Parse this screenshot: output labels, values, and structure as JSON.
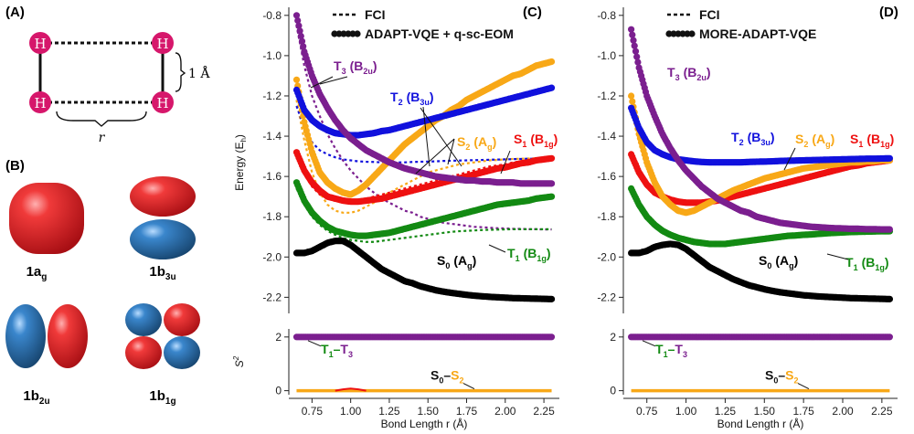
{
  "panels": {
    "a": "(A)",
    "b": "(B)",
    "c": "(C)",
    "d": "(D)"
  },
  "molecule": {
    "atom": "H",
    "distance_label": "1 Å",
    "r_label": "r"
  },
  "orbitals": [
    {
      "name": "1a",
      "sub": "g"
    },
    {
      "name": "1b",
      "sub": "3u"
    },
    {
      "name": "1b",
      "sub": "2u"
    },
    {
      "name": "1b",
      "sub": "1g"
    }
  ],
  "colors": {
    "S0": "#000000",
    "T1": "#138a13",
    "S1": "#ee1111",
    "S2": "#f8a817",
    "T2": "#1111dd",
    "T3": "#7b1f8f",
    "orb_red": "#e2222a",
    "orb_blue": "#2a6db0",
    "atom": "#d6176b"
  },
  "axes": {
    "y_energy_label": "Energy (E",
    "y_energy_sub": "h",
    "y_energy_close": ")",
    "y_s2_label": "S",
    "y_s2_sup": "2",
    "x_label": "Bond Length r (Å)",
    "x_ticks": [
      "0.75",
      "1.00",
      "1.25",
      "1.50",
      "1.75",
      "2.00",
      "2.25"
    ],
    "x_tick_values": [
      0.75,
      1.0,
      1.25,
      1.5,
      1.75,
      2.0,
      2.25
    ],
    "y_ticks": [
      "-0.8",
      "-1.0",
      "-1.2",
      "-1.4",
      "-1.6",
      "-1.8",
      "-2.0",
      "-2.2"
    ],
    "y_tick_values": [
      -0.8,
      -1.0,
      -1.2,
      -1.4,
      -1.6,
      -1.8,
      -2.0,
      -2.2
    ],
    "s2_ticks": [
      "2",
      "0"
    ],
    "s2_tick_values": [
      2,
      0
    ]
  },
  "chart_data": [
    {
      "type": "line",
      "panel": "C",
      "legend": [
        {
          "label": "FCI",
          "style": "dashed"
        },
        {
          "label": "ADAPT-VQE + q-sc-EOM",
          "style": "dots"
        }
      ],
      "xlim": [
        0.6,
        2.35
      ],
      "ylim": [
        -2.28,
        -0.76
      ],
      "x": [
        0.65,
        0.7,
        0.75,
        0.8,
        0.85,
        0.9,
        0.95,
        1.0,
        1.05,
        1.1,
        1.15,
        1.2,
        1.25,
        1.3,
        1.35,
        1.4,
        1.45,
        1.5,
        1.55,
        1.6,
        1.65,
        1.7,
        1.75,
        1.8,
        1.85,
        1.9,
        1.95,
        2.0,
        2.05,
        2.1,
        2.15,
        2.2,
        2.25,
        2.3
      ],
      "series": [
        {
          "name": "S0",
          "label": "S",
          "sub": "0",
          "sym": "A",
          "symsub": "g",
          "kind": "vqe",
          "values": [
            -1.98,
            -1.98,
            -1.97,
            -1.95,
            -1.93,
            -1.92,
            -1.92,
            -1.94,
            -1.97,
            -2.0,
            -2.03,
            -2.06,
            -2.08,
            -2.1,
            -2.12,
            -2.13,
            -2.145,
            -2.155,
            -2.165,
            -2.172,
            -2.178,
            -2.183,
            -2.188,
            -2.192,
            -2.195,
            -2.198,
            -2.2,
            -2.202,
            -2.204,
            -2.205,
            -2.206,
            -2.207,
            -2.208,
            -2.209
          ]
        },
        {
          "name": "T1",
          "label": "T",
          "sub": "1",
          "sym": "B",
          "symsub": "1g",
          "kind": "vqe",
          "values": [
            -1.63,
            -1.72,
            -1.78,
            -1.82,
            -1.85,
            -1.87,
            -1.88,
            -1.89,
            -1.895,
            -1.895,
            -1.89,
            -1.885,
            -1.88,
            -1.87,
            -1.86,
            -1.85,
            -1.84,
            -1.83,
            -1.82,
            -1.81,
            -1.8,
            -1.79,
            -1.78,
            -1.77,
            -1.76,
            -1.75,
            -1.74,
            -1.735,
            -1.73,
            -1.725,
            -1.72,
            -1.71,
            -1.705,
            -1.7
          ]
        },
        {
          "name": "S1",
          "label": "S",
          "sub": "1",
          "sym": "B",
          "symsub": "1g",
          "kind": "vqe",
          "values": [
            -1.48,
            -1.57,
            -1.63,
            -1.67,
            -1.7,
            -1.71,
            -1.72,
            -1.725,
            -1.725,
            -1.72,
            -1.715,
            -1.71,
            -1.7,
            -1.69,
            -1.68,
            -1.67,
            -1.66,
            -1.65,
            -1.64,
            -1.63,
            -1.62,
            -1.61,
            -1.6,
            -1.59,
            -1.58,
            -1.57,
            -1.56,
            -1.555,
            -1.545,
            -1.535,
            -1.53,
            -1.52,
            -1.515,
            -1.51
          ]
        },
        {
          "name": "S2",
          "label": "S",
          "sub": "2",
          "sym": "A",
          "symsub": "g",
          "kind": "vqe",
          "values": [
            -1.12,
            -1.33,
            -1.48,
            -1.58,
            -1.63,
            -1.66,
            -1.68,
            -1.69,
            -1.67,
            -1.64,
            -1.6,
            -1.56,
            -1.52,
            -1.48,
            -1.44,
            -1.41,
            -1.38,
            -1.35,
            -1.32,
            -1.3,
            -1.27,
            -1.25,
            -1.22,
            -1.2,
            -1.18,
            -1.16,
            -1.14,
            -1.12,
            -1.1,
            -1.09,
            -1.07,
            -1.05,
            -1.04,
            -1.03
          ]
        },
        {
          "name": "T2",
          "label": "T",
          "sub": "2",
          "sym": "B",
          "symsub": "3u",
          "kind": "vqe",
          "values": [
            -1.17,
            -1.27,
            -1.32,
            -1.35,
            -1.37,
            -1.385,
            -1.39,
            -1.395,
            -1.395,
            -1.39,
            -1.385,
            -1.375,
            -1.37,
            -1.36,
            -1.35,
            -1.34,
            -1.33,
            -1.32,
            -1.31,
            -1.3,
            -1.29,
            -1.28,
            -1.27,
            -1.26,
            -1.25,
            -1.24,
            -1.23,
            -1.22,
            -1.21,
            -1.2,
            -1.19,
            -1.18,
            -1.17,
            -1.16
          ]
        },
        {
          "name": "T3",
          "label": "T",
          "sub": "3",
          "sym": "B",
          "symsub": "2u",
          "kind": "vqe",
          "values": [
            -0.8,
            -0.98,
            -1.1,
            -1.19,
            -1.26,
            -1.32,
            -1.37,
            -1.41,
            -1.44,
            -1.47,
            -1.49,
            -1.51,
            -1.53,
            -1.545,
            -1.56,
            -1.57,
            -1.58,
            -1.59,
            -1.6,
            -1.605,
            -1.61,
            -1.615,
            -1.62,
            -1.62,
            -1.625,
            -1.625,
            -1.63,
            -1.63,
            -1.63,
            -1.635,
            -1.635,
            -1.635,
            -1.635,
            -1.635
          ]
        },
        {
          "name": "FCI_T3",
          "kind": "fci",
          "color": "T3",
          "values": [
            -0.85,
            -1.05,
            -1.2,
            -1.3,
            -1.39,
            -1.46,
            -1.52,
            -1.57,
            -1.61,
            -1.65,
            -1.68,
            -1.71,
            -1.73,
            -1.75,
            -1.77,
            -1.78,
            -1.8,
            -1.81,
            -1.82,
            -1.83,
            -1.835,
            -1.84,
            -1.845,
            -1.85,
            -1.852,
            -1.855,
            -1.857,
            -1.858,
            -1.86,
            -1.86,
            -1.862,
            -1.862,
            -1.863,
            -1.863
          ]
        },
        {
          "name": "FCI_S2",
          "kind": "fci",
          "color": "S2",
          "values": [
            -1.22,
            -1.42,
            -1.58,
            -1.68,
            -1.74,
            -1.77,
            -1.78,
            -1.78,
            -1.77,
            -1.75,
            -1.73,
            -1.7,
            -1.68,
            -1.66,
            -1.64,
            -1.62,
            -1.6,
            -1.58,
            -1.57,
            -1.56,
            -1.55,
            -1.54,
            -1.535,
            -1.53,
            -1.525,
            -1.52,
            -1.518,
            -1.515,
            -1.513,
            -1.512,
            -1.511,
            -1.51,
            -1.51,
            -1.51
          ]
        },
        {
          "name": "FCI_T2",
          "kind": "fci",
          "color": "T2",
          "values": [
            -1.25,
            -1.36,
            -1.43,
            -1.47,
            -1.49,
            -1.505,
            -1.515,
            -1.52,
            -1.525,
            -1.527,
            -1.528,
            -1.53,
            -1.53,
            -1.53,
            -1.53,
            -1.528,
            -1.527,
            -1.526,
            -1.525,
            -1.523,
            -1.522,
            -1.521,
            -1.52,
            -1.519,
            -1.518,
            -1.517,
            -1.516,
            -1.515,
            -1.514,
            -1.513,
            -1.512,
            -1.512,
            -1.511,
            -1.51
          ]
        },
        {
          "name": "FCI_S1",
          "kind": "fci",
          "color": "S1",
          "values": [
            -1.5,
            -1.59,
            -1.65,
            -1.69,
            -1.71,
            -1.72,
            -1.725,
            -1.72,
            -1.715,
            -1.71,
            -1.7,
            -1.69,
            -1.68,
            -1.67,
            -1.66,
            -1.65,
            -1.64,
            -1.63,
            -1.62,
            -1.61,
            -1.6,
            -1.59,
            -1.58,
            -1.57,
            -1.56,
            -1.55,
            -1.545,
            -1.54,
            -1.53,
            -1.525,
            -1.52,
            -1.515,
            -1.51,
            -1.51
          ]
        },
        {
          "name": "FCI_T1",
          "kind": "fci",
          "color": "T1",
          "values": [
            -1.66,
            -1.74,
            -1.8,
            -1.84,
            -1.87,
            -1.89,
            -1.905,
            -1.915,
            -1.92,
            -1.925,
            -1.925,
            -1.92,
            -1.915,
            -1.91,
            -1.905,
            -1.9,
            -1.895,
            -1.89,
            -1.885,
            -1.88,
            -1.875,
            -1.872,
            -1.87,
            -1.868,
            -1.866,
            -1.865,
            -1.864,
            -1.863,
            -1.862,
            -1.862,
            -1.862,
            -1.862,
            -1.862,
            -1.862
          ]
        }
      ],
      "s2": {
        "ylim": [
          -0.15,
          2.3
        ],
        "T1_T3": 2,
        "S0_S2": 0,
        "bump_x": [
          0.9,
          0.95,
          1.0,
          1.05,
          1.1
        ],
        "bump_vals": [
          0.0,
          0.05,
          0.08,
          0.05,
          0.0
        ],
        "label_top": {
          "a": "T",
          "as": "1",
          "b": "T",
          "bs": "3"
        },
        "label_bot": {
          "a": "S",
          "as": "0",
          "b": "S",
          "bs": "2"
        }
      }
    },
    {
      "type": "line",
      "panel": "D",
      "legend": [
        {
          "label": "FCI",
          "style": "dashed"
        },
        {
          "label": "MORE-ADAPT-VQE",
          "style": "dots"
        }
      ],
      "xlim": [
        0.6,
        2.35
      ],
      "ylim": [
        -2.28,
        -0.76
      ],
      "x": [
        0.65,
        0.7,
        0.75,
        0.8,
        0.85,
        0.9,
        0.95,
        1.0,
        1.05,
        1.1,
        1.15,
        1.2,
        1.25,
        1.3,
        1.35,
        1.4,
        1.45,
        1.5,
        1.55,
        1.6,
        1.65,
        1.7,
        1.75,
        1.8,
        1.85,
        1.9,
        1.95,
        2.0,
        2.05,
        2.1,
        2.15,
        2.2,
        2.25,
        2.3
      ],
      "series": [
        {
          "name": "S0",
          "label": "S",
          "sub": "0",
          "sym": "A",
          "symsub": "g",
          "kind": "vqe",
          "values": [
            -1.98,
            -1.98,
            -1.97,
            -1.95,
            -1.94,
            -1.935,
            -1.94,
            -1.96,
            -1.99,
            -2.02,
            -2.05,
            -2.07,
            -2.09,
            -2.11,
            -2.125,
            -2.14,
            -2.15,
            -2.16,
            -2.168,
            -2.175,
            -2.18,
            -2.185,
            -2.19,
            -2.193,
            -2.196,
            -2.198,
            -2.2,
            -2.202,
            -2.204,
            -2.205,
            -2.206,
            -2.207,
            -2.208,
            -2.209
          ]
        },
        {
          "name": "T1",
          "label": "T",
          "sub": "1",
          "sym": "B",
          "symsub": "1g",
          "kind": "vqe",
          "values": [
            -1.66,
            -1.74,
            -1.8,
            -1.84,
            -1.87,
            -1.89,
            -1.905,
            -1.915,
            -1.925,
            -1.93,
            -1.935,
            -1.935,
            -1.935,
            -1.93,
            -1.925,
            -1.92,
            -1.915,
            -1.91,
            -1.905,
            -1.9,
            -1.895,
            -1.893,
            -1.89,
            -1.888,
            -1.885,
            -1.882,
            -1.88,
            -1.878,
            -1.876,
            -1.875,
            -1.874,
            -1.873,
            -1.872,
            -1.872
          ]
        },
        {
          "name": "S1",
          "label": "S",
          "sub": "1",
          "sym": "B",
          "symsub": "1g",
          "kind": "vqe",
          "values": [
            -1.49,
            -1.58,
            -1.64,
            -1.68,
            -1.7,
            -1.715,
            -1.725,
            -1.73,
            -1.73,
            -1.73,
            -1.725,
            -1.72,
            -1.71,
            -1.7,
            -1.69,
            -1.68,
            -1.67,
            -1.66,
            -1.65,
            -1.64,
            -1.63,
            -1.62,
            -1.61,
            -1.6,
            -1.59,
            -1.58,
            -1.57,
            -1.56,
            -1.55,
            -1.545,
            -1.535,
            -1.53,
            -1.525,
            -1.52
          ]
        },
        {
          "name": "S2",
          "label": "S",
          "sub": "2",
          "sym": "A",
          "symsub": "g",
          "kind": "vqe",
          "values": [
            -1.2,
            -1.39,
            -1.53,
            -1.63,
            -1.7,
            -1.74,
            -1.77,
            -1.78,
            -1.77,
            -1.75,
            -1.73,
            -1.71,
            -1.69,
            -1.67,
            -1.655,
            -1.64,
            -1.625,
            -1.61,
            -1.6,
            -1.59,
            -1.58,
            -1.57,
            -1.56,
            -1.555,
            -1.55,
            -1.545,
            -1.54,
            -1.535,
            -1.53,
            -1.53,
            -1.525,
            -1.525,
            -1.52,
            -1.52
          ]
        },
        {
          "name": "T2",
          "label": "T",
          "sub": "2",
          "sym": "B",
          "symsub": "3u",
          "kind": "vqe",
          "values": [
            -1.26,
            -1.36,
            -1.43,
            -1.47,
            -1.49,
            -1.505,
            -1.515,
            -1.52,
            -1.525,
            -1.528,
            -1.53,
            -1.53,
            -1.53,
            -1.53,
            -1.53,
            -1.528,
            -1.527,
            -1.526,
            -1.525,
            -1.523,
            -1.522,
            -1.521,
            -1.52,
            -1.519,
            -1.518,
            -1.517,
            -1.516,
            -1.515,
            -1.514,
            -1.513,
            -1.512,
            -1.512,
            -1.511,
            -1.51
          ]
        },
        {
          "name": "T3",
          "label": "T",
          "sub": "3",
          "sym": "B",
          "symsub": "2u",
          "kind": "vqe",
          "values": [
            -0.87,
            -1.06,
            -1.2,
            -1.3,
            -1.39,
            -1.46,
            -1.52,
            -1.57,
            -1.61,
            -1.65,
            -1.68,
            -1.71,
            -1.73,
            -1.75,
            -1.77,
            -1.78,
            -1.8,
            -1.81,
            -1.82,
            -1.83,
            -1.835,
            -1.84,
            -1.845,
            -1.85,
            -1.852,
            -1.855,
            -1.857,
            -1.858,
            -1.86,
            -1.86,
            -1.862,
            -1.862,
            -1.863,
            -1.863
          ]
        }
      ],
      "s2": {
        "ylim": [
          -0.15,
          2.3
        ],
        "T1_T3": 2,
        "S0_S2": 0,
        "label_top": {
          "a": "T",
          "as": "1",
          "b": "T",
          "bs": "3"
        },
        "label_bot": {
          "a": "S",
          "as": "0",
          "b": "S",
          "bs": "2"
        }
      }
    }
  ]
}
